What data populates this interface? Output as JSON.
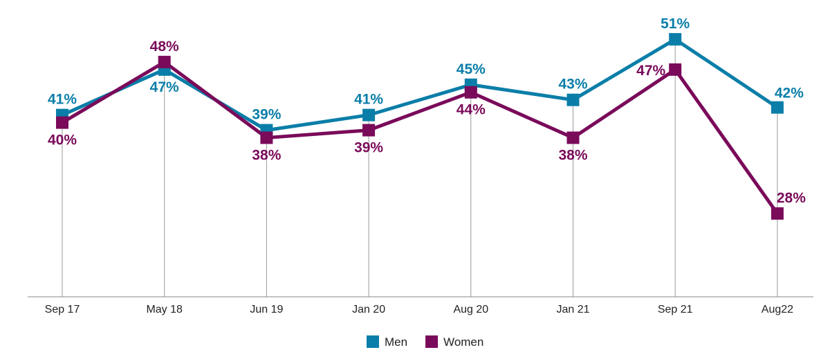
{
  "chart_data": {
    "type": "line",
    "categories": [
      "Sep 17",
      "May 18",
      "Jun 19",
      "Jan 20",
      "Aug 20",
      "Jan 21",
      "Sep 21",
      "Aug22"
    ],
    "series": [
      {
        "name": "Men",
        "color": "#0a7ea8",
        "values": [
          41,
          47,
          39,
          41,
          45,
          43,
          51,
          42
        ],
        "labels": [
          "41%",
          "47%",
          "39%",
          "41%",
          "45%",
          "43%",
          "51%",
          "42%"
        ]
      },
      {
        "name": "Women",
        "color": "#7a0a5a",
        "values": [
          40,
          48,
          38,
          39,
          44,
          38,
          47,
          28
        ],
        "labels": [
          "40%",
          "48%",
          "38%",
          "39%",
          "44%",
          "38%",
          "47%",
          "28%"
        ]
      }
    ],
    "ylim": [
      17,
      54
    ],
    "grid": "vertical lines at categories",
    "legend": "bottom-center",
    "title": "",
    "xlabel": "",
    "ylabel": ""
  }
}
